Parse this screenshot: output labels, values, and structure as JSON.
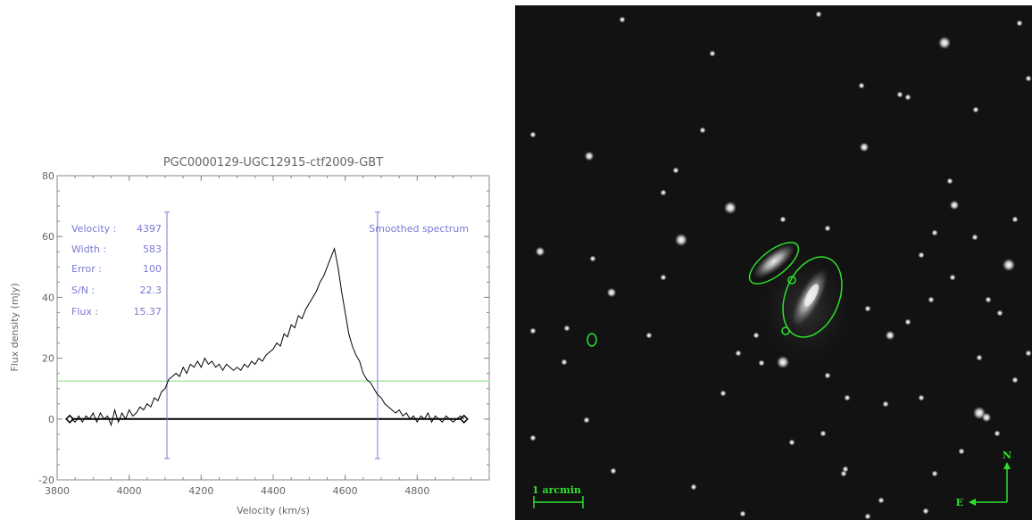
{
  "chart_data": {
    "type": "line",
    "title": "PGC0000129-UGC12915-ctf2009-GBT",
    "xlabel": "Velocity (km/s)",
    "ylabel": "Flux density (mJy)",
    "xlim": [
      3800,
      5000
    ],
    "ylim": [
      -20,
      80
    ],
    "x_ticks": [
      3800,
      4000,
      4200,
      4400,
      4600,
      4800
    ],
    "y_ticks": [
      -20,
      0,
      20,
      40,
      60,
      80
    ],
    "grid": false,
    "annotations": {
      "velocity_label": "Velocity :",
      "velocity_value": "4397",
      "width_label": "Width :",
      "width_value": "583",
      "error_label": "Error :",
      "error_value": "100",
      "sn_label": "S/N :",
      "sn_value": "22.3",
      "flux_label": "Flux :",
      "flux_value": "15.37",
      "legend": "Smoothed spectrum"
    },
    "colors": {
      "spectrum": "#000000",
      "markers": "#7a7ad6",
      "level": "#7fd67f",
      "baseline": "#000000"
    },
    "vertical_markers": [
      4105,
      4690
    ],
    "marker_range": [
      -13,
      68
    ],
    "level_line": 12.5,
    "baseline_range": [
      3835,
      4930
    ],
    "series": [
      {
        "x": [
          3840,
          3850,
          3860,
          3870,
          3880,
          3890,
          3900,
          3910,
          3920,
          3930,
          3940,
          3950,
          3960,
          3970,
          3980,
          3990,
          4000,
          4010,
          4020,
          4030,
          4040,
          4050,
          4060,
          4070,
          4080,
          4090,
          4100,
          4110,
          4120,
          4130,
          4140,
          4150,
          4160,
          4170,
          4180,
          4190,
          4200,
          4210,
          4220,
          4230,
          4240,
          4250,
          4260,
          4270,
          4280,
          4290,
          4300,
          4310,
          4320,
          4330,
          4340,
          4350,
          4360,
          4370,
          4380,
          4390,
          4400,
          4410,
          4420,
          4430,
          4440,
          4450,
          4460,
          4470,
          4480,
          4490,
          4500,
          4510,
          4520,
          4530,
          4540,
          4550,
          4560,
          4570,
          4580,
          4590,
          4600,
          4610,
          4620,
          4630,
          4640,
          4650,
          4660,
          4670,
          4680,
          4690,
          4700,
          4710,
          4720,
          4730,
          4740,
          4750,
          4760,
          4770,
          4780,
          4790,
          4800,
          4810,
          4820,
          4830,
          4840,
          4850,
          4860,
          4870,
          4880,
          4890,
          4900,
          4910,
          4920,
          4930
        ],
        "y": [
          0,
          -1,
          1,
          -1,
          1,
          0,
          2,
          -1,
          2,
          0,
          1,
          -2,
          3,
          -1,
          2,
          0,
          3,
          1,
          2,
          4,
          3,
          5,
          4,
          7,
          6,
          9,
          10,
          13,
          14,
          15,
          14,
          17,
          15,
          18,
          17,
          19,
          17,
          20,
          18,
          19,
          17,
          18,
          16,
          18,
          17,
          16,
          17,
          16,
          18,
          17,
          19,
          18,
          20,
          19,
          21,
          22,
          23,
          25,
          24,
          28,
          27,
          31,
          30,
          34,
          33,
          36,
          38,
          40,
          42,
          45,
          47,
          50,
          53,
          56,
          50,
          42,
          35,
          28,
          24,
          21,
          19,
          15,
          13,
          12,
          10,
          8,
          7,
          5,
          4,
          3,
          2,
          3,
          1,
          2,
          0,
          1,
          -1,
          1,
          0,
          2,
          -1,
          1,
          0,
          -1,
          1,
          0,
          -1,
          0,
          1,
          0
        ]
      }
    ]
  },
  "sky_panel": {
    "scale_bar_label": "1 arcmin",
    "compass_north": "N",
    "compass_east": "E",
    "overlay_color": "#2ee02e",
    "background_color": "#121212"
  }
}
